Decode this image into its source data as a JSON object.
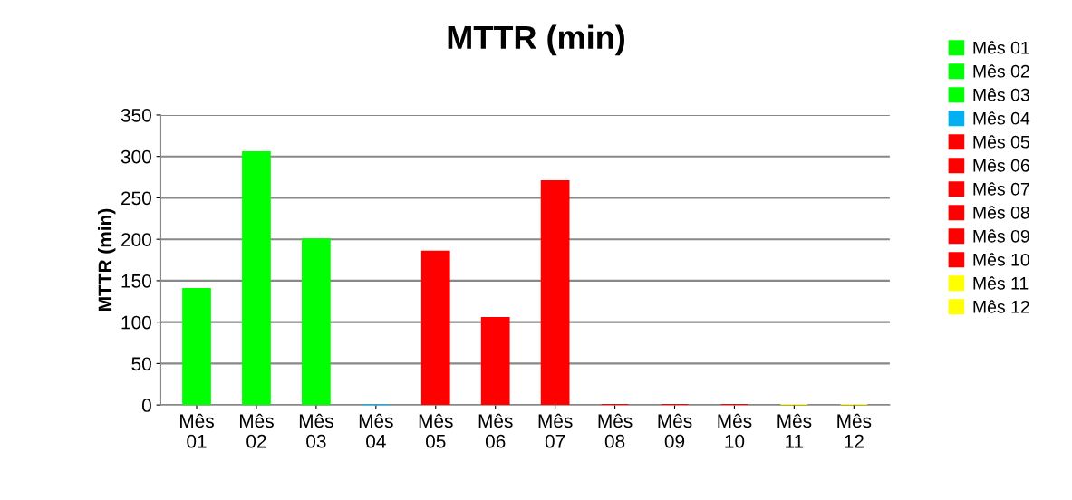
{
  "chart_data": {
    "type": "bar",
    "title": "MTTR (min)",
    "ylabel": "MTTR (min)",
    "categories": [
      "Mês 01",
      "Mês 02",
      "Mês 03",
      "Mês 04",
      "Mês 05",
      "Mês 06",
      "Mês 07",
      "Mês 08",
      "Mês 09",
      "Mês 10",
      "Mês 11",
      "Mês 12"
    ],
    "series": [
      {
        "name": "Mês 01",
        "color": "#00ff00",
        "values": [
          140,
          null,
          null,
          null,
          null,
          null,
          null,
          null,
          null,
          null,
          null,
          null
        ]
      },
      {
        "name": "Mês 02",
        "color": "#00ff00",
        "values": [
          null,
          305,
          null,
          null,
          null,
          null,
          null,
          null,
          null,
          null,
          null,
          null
        ]
      },
      {
        "name": "Mês 03",
        "color": "#00ff00",
        "values": [
          null,
          null,
          200,
          null,
          null,
          null,
          null,
          null,
          null,
          null,
          null,
          null
        ]
      },
      {
        "name": "Mês 04",
        "color": "#00b0f0",
        "values": [
          null,
          null,
          null,
          0,
          null,
          null,
          null,
          null,
          null,
          null,
          null,
          null
        ]
      },
      {
        "name": "Mês 05",
        "color": "#ff0000",
        "values": [
          null,
          null,
          null,
          null,
          185,
          null,
          null,
          null,
          null,
          null,
          null,
          null
        ]
      },
      {
        "name": "Mês 06",
        "color": "#ff0000",
        "values": [
          null,
          null,
          null,
          null,
          null,
          105,
          null,
          null,
          null,
          null,
          null,
          null
        ]
      },
      {
        "name": "Mês 07",
        "color": "#ff0000",
        "values": [
          null,
          null,
          null,
          null,
          null,
          null,
          270,
          null,
          null,
          null,
          null,
          null
        ]
      },
      {
        "name": "Mês 08",
        "color": "#ff0000",
        "values": [
          null,
          null,
          null,
          null,
          null,
          null,
          null,
          0,
          null,
          null,
          null,
          null
        ]
      },
      {
        "name": "Mês 09",
        "color": "#ff0000",
        "values": [
          null,
          null,
          null,
          null,
          null,
          null,
          null,
          null,
          0,
          null,
          null,
          null
        ]
      },
      {
        "name": "Mês 10",
        "color": "#ff0000",
        "values": [
          null,
          null,
          null,
          null,
          null,
          null,
          null,
          null,
          null,
          0,
          null,
          null
        ]
      },
      {
        "name": "Mês 11",
        "color": "#ffff00",
        "values": [
          null,
          null,
          null,
          null,
          null,
          null,
          null,
          null,
          null,
          null,
          0,
          null
        ]
      },
      {
        "name": "Mês 12",
        "color": "#ffff00",
        "values": [
          null,
          null,
          null,
          null,
          null,
          null,
          null,
          null,
          null,
          null,
          null,
          0
        ]
      }
    ],
    "ylim": [
      0,
      350
    ],
    "yticks": [
      0,
      50,
      100,
      150,
      200,
      250,
      300,
      350
    ],
    "grid": "y",
    "legend": "right"
  }
}
